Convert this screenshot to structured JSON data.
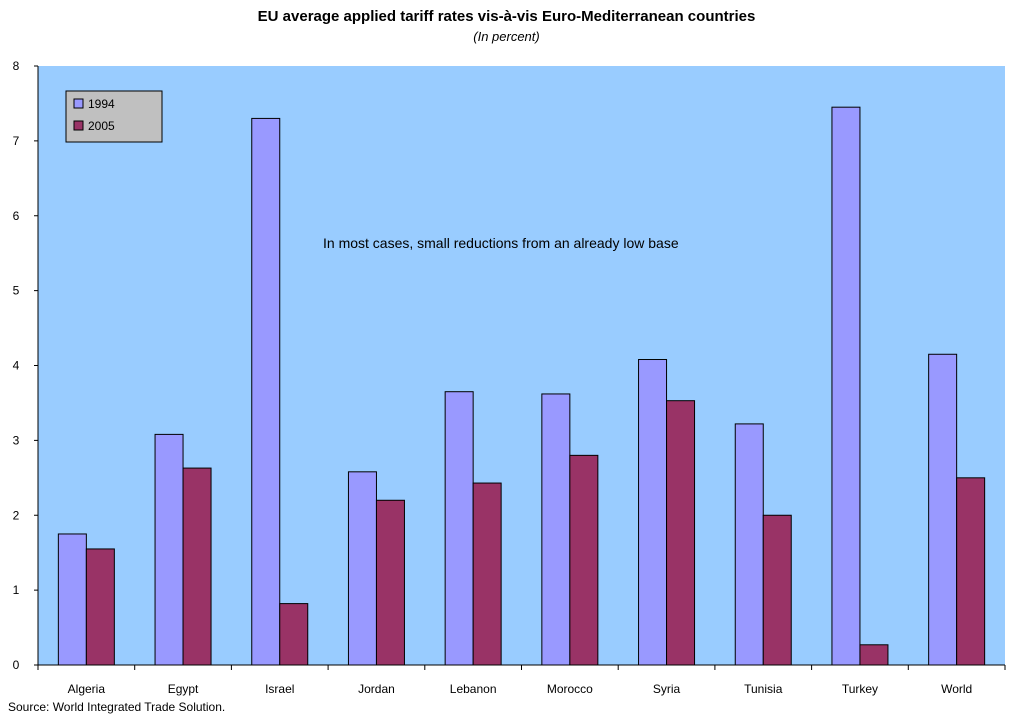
{
  "chart_data": {
    "type": "bar",
    "title": "EU average applied tariff rates vis-à-vis Euro-Mediterranean countries",
    "subtitle": "(In percent)",
    "categories": [
      "Algeria",
      "Egypt",
      "Israel",
      "Jordan",
      "Lebanon",
      "Morocco",
      "Syria",
      "Tunisia",
      "Turkey",
      "World"
    ],
    "series": [
      {
        "name": "1994",
        "values": [
          1.75,
          3.08,
          7.3,
          2.58,
          3.65,
          3.62,
          4.08,
          3.22,
          7.45,
          4.15
        ],
        "color": "#9999ff"
      },
      {
        "name": "2005",
        "values": [
          1.55,
          2.63,
          0.82,
          2.2,
          2.43,
          2.8,
          3.53,
          2.0,
          0.27,
          2.5
        ],
        "color": "#993366"
      }
    ],
    "ylim": [
      0,
      8
    ],
    "yticks": [
      0,
      1,
      2,
      3,
      4,
      5,
      6,
      7,
      8
    ],
    "xlabel": "",
    "ylabel": "",
    "grid": false,
    "legend_position": "top-left",
    "plot_background": "#99ccff",
    "annotation": "In most cases, small reductions from an already low base",
    "source": "Source: World Integrated Trade Solution."
  }
}
